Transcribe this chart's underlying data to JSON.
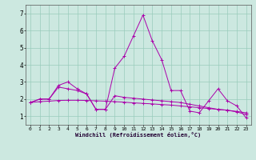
{
  "xlabel": "Windchill (Refroidissement éolien,°C)",
  "bg_color": "#cce8e0",
  "line_color": "#aa00aa",
  "grid_color": "#99ccbb",
  "xlim": [
    -0.5,
    23.5
  ],
  "ylim": [
    0.5,
    7.5
  ],
  "xticks": [
    0,
    1,
    2,
    3,
    4,
    5,
    6,
    7,
    8,
    9,
    10,
    11,
    12,
    13,
    14,
    15,
    16,
    17,
    18,
    19,
    20,
    21,
    22,
    23
  ],
  "yticks": [
    1,
    2,
    3,
    4,
    5,
    6,
    7
  ],
  "series": [
    {
      "x": [
        0,
        1,
        2,
        3,
        4,
        5,
        6,
        7,
        8,
        9,
        10,
        11,
        12,
        13,
        14,
        15,
        16,
        17,
        18,
        19,
        20,
        21,
        22,
        23
      ],
      "y": [
        1.8,
        1.85,
        1.88,
        1.92,
        1.93,
        1.93,
        1.92,
        1.9,
        1.88,
        1.85,
        1.82,
        1.78,
        1.75,
        1.72,
        1.68,
        1.65,
        1.6,
        1.55,
        1.5,
        1.45,
        1.4,
        1.35,
        1.28,
        1.2
      ]
    },
    {
      "x": [
        0,
        1,
        2,
        3,
        4,
        5,
        6,
        7,
        8,
        9,
        10,
        11,
        12,
        13,
        14,
        15,
        16,
        17,
        18,
        19,
        20,
        21,
        22,
        23
      ],
      "y": [
        1.8,
        2.0,
        2.0,
        2.7,
        2.6,
        2.5,
        2.3,
        1.4,
        1.4,
        2.2,
        2.1,
        2.05,
        2.0,
        1.95,
        1.9,
        1.85,
        1.8,
        1.7,
        1.6,
        1.5,
        1.4,
        1.35,
        1.25,
        1.1
      ]
    },
    {
      "x": [
        0,
        1,
        2,
        3,
        4,
        5,
        6,
        7,
        8,
        9,
        10,
        11,
        12,
        13,
        14,
        15,
        16,
        17,
        18,
        19,
        20,
        21,
        22,
        23
      ],
      "y": [
        1.8,
        2.0,
        2.0,
        2.8,
        3.0,
        2.6,
        2.3,
        1.4,
        1.4,
        3.8,
        4.5,
        5.7,
        6.9,
        5.4,
        4.3,
        2.5,
        2.5,
        1.3,
        1.2,
        1.9,
        2.6,
        1.9,
        1.6,
        0.9
      ]
    }
  ]
}
